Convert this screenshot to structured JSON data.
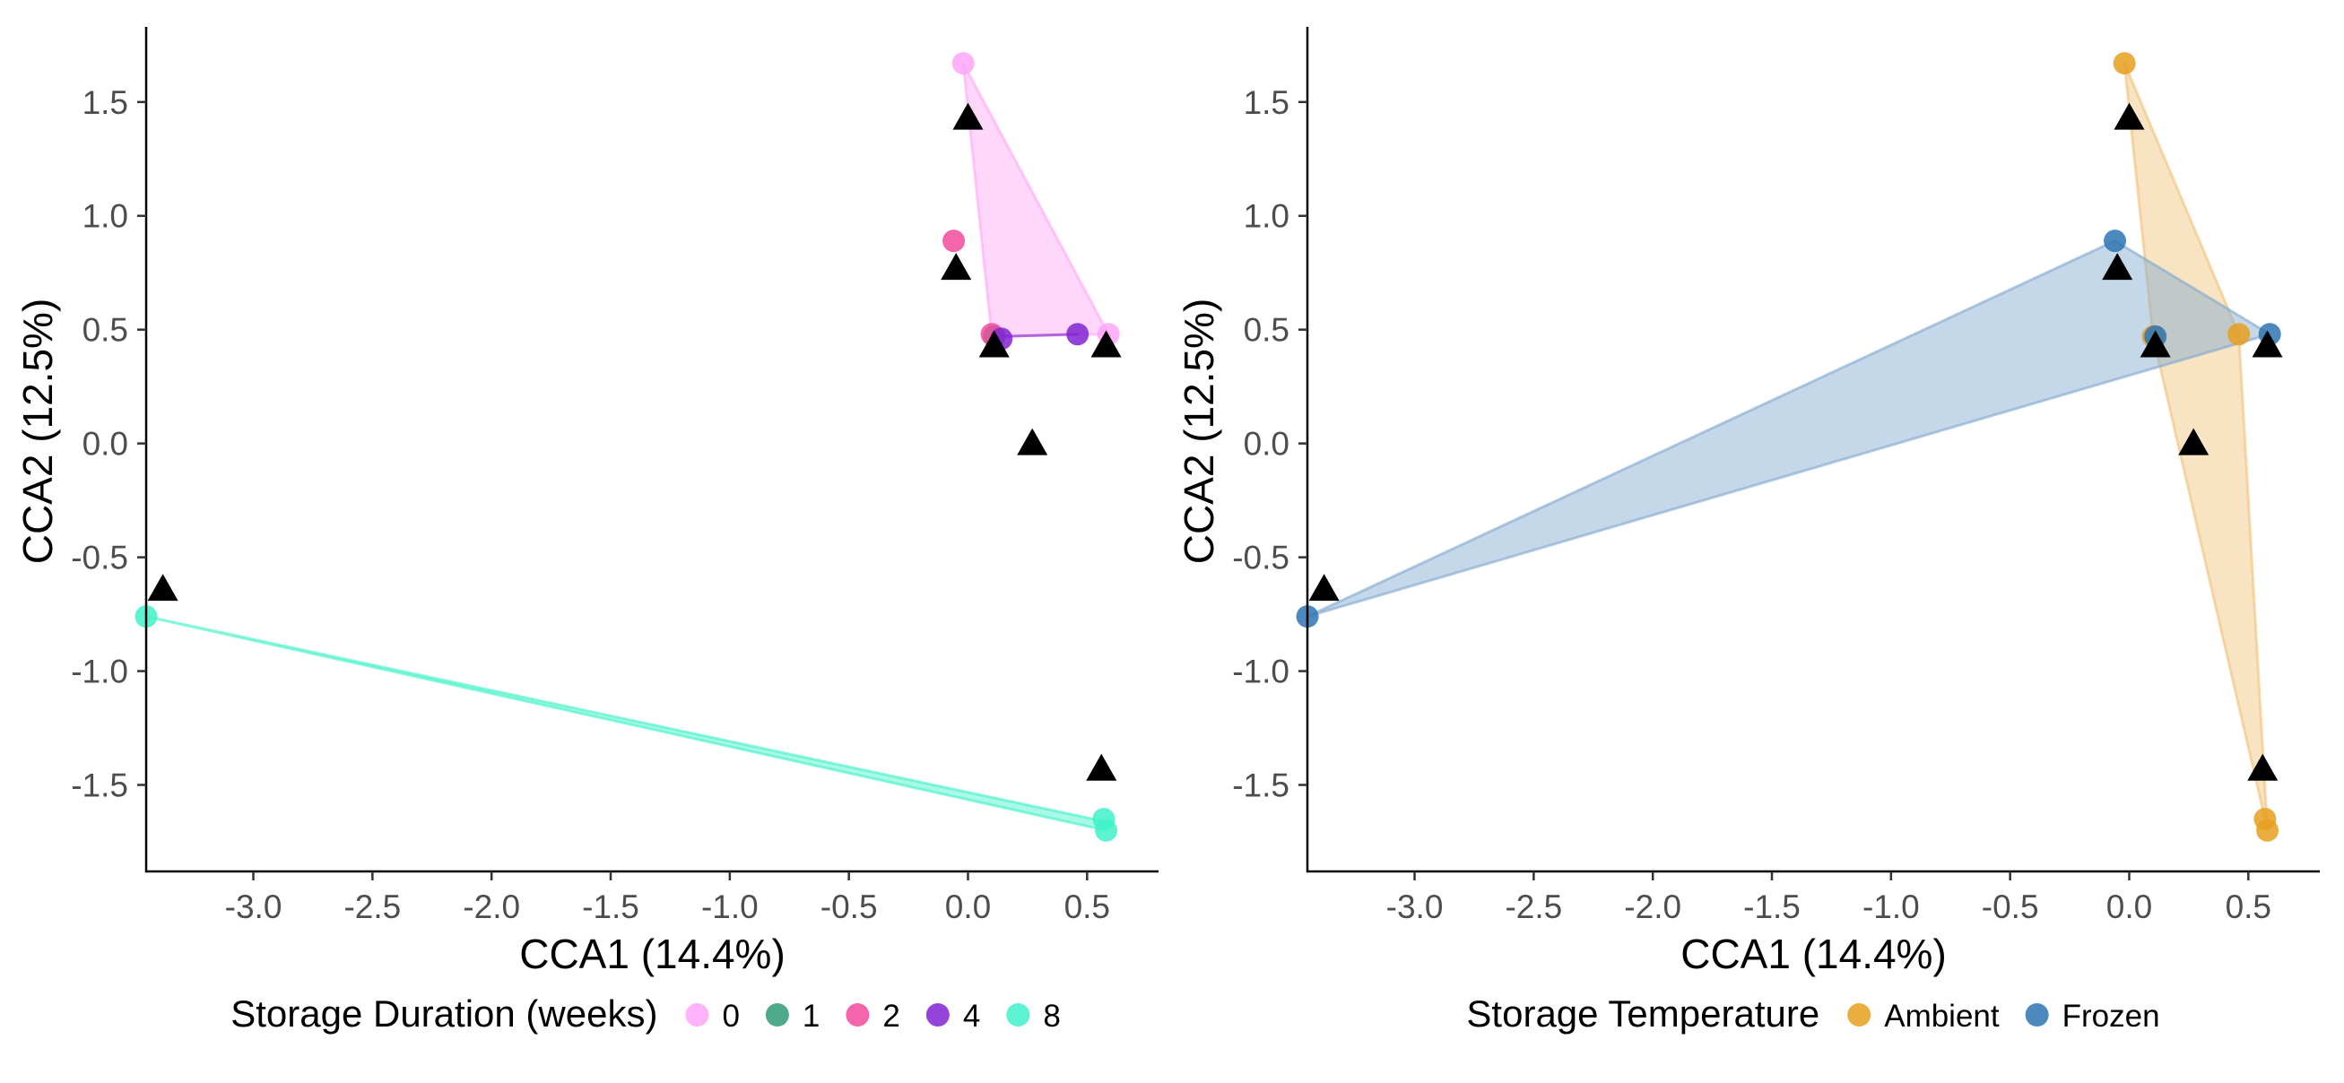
{
  "chart_data": [
    {
      "type": "scatter",
      "title": "",
      "xlabel": "CCA1 (14.4%)",
      "ylabel": "CCA2 (12.5%)",
      "xlim": [
        -3.45,
        0.8
      ],
      "ylim": [
        -1.88,
        1.83
      ],
      "x_ticks": [
        "-3.0",
        "-2.5",
        "-2.0",
        "-1.5",
        "-1.0",
        "-0.5",
        "0.0",
        "0.5"
      ],
      "y_ticks": [
        "-1.5",
        "-1.0",
        "-0.5",
        "0.0",
        "0.5",
        "1.0",
        "1.5"
      ],
      "grid": false,
      "legend": {
        "title": "Storage Duration (weeks)",
        "position": "bottom",
        "entries": [
          {
            "label": "0",
            "color": "#ffa6f7"
          },
          {
            "label": "1",
            "color": "#2e9a74"
          },
          {
            "label": "2",
            "color": "#f24a9e"
          },
          {
            "label": "4",
            "color": "#8123d1"
          },
          {
            "label": "8",
            "color": "#40f2c8"
          }
        ]
      },
      "hulls": [
        {
          "group": "0",
          "color": "#ffa6f7",
          "points": [
            [
              -0.02,
              1.67
            ],
            [
              0.59,
              0.48
            ],
            [
              0.1,
              0.47
            ]
          ]
        },
        {
          "group": "4",
          "color": "#8123d1",
          "points": [
            [
              0.14,
              0.47
            ],
            [
              0.46,
              0.48
            ]
          ]
        },
        {
          "group": "8",
          "color": "#40f2c8",
          "points": [
            [
              -3.45,
              -0.76
            ],
            [
              0.57,
              -1.66
            ],
            [
              0.58,
              -1.7
            ]
          ]
        }
      ],
      "series": [
        {
          "name": "0",
          "color": "#ffa6f7",
          "points": [
            [
              -0.02,
              1.67
            ],
            [
              0.59,
              0.48
            ]
          ]
        },
        {
          "name": "1",
          "color": "#2e9a74",
          "points": [
            [
              0.11,
              0.47
            ]
          ]
        },
        {
          "name": "2",
          "color": "#f24a9e",
          "points": [
            [
              -0.06,
              0.89
            ],
            [
              0.1,
              0.48
            ]
          ]
        },
        {
          "name": "4",
          "color": "#8123d1",
          "points": [
            [
              0.14,
              0.46
            ],
            [
              0.46,
              0.48
            ]
          ]
        },
        {
          "name": "8",
          "color": "#40f2c8",
          "points": [
            [
              -3.45,
              -0.76
            ],
            [
              0.57,
              -1.65
            ],
            [
              0.58,
              -1.7
            ]
          ]
        }
      ],
      "triangles": [
        [
          -3.38,
          -0.64
        ],
        [
          0.0,
          1.43
        ],
        [
          -0.05,
          0.77
        ],
        [
          0.11,
          0.43
        ],
        [
          0.58,
          0.43
        ],
        [
          0.27,
          0.0
        ],
        [
          0.56,
          -1.43
        ]
      ]
    },
    {
      "type": "scatter",
      "title": "",
      "xlabel": "CCA1 (14.4%)",
      "ylabel": "CCA2 (12.5%)",
      "xlim": [
        -3.45,
        0.8
      ],
      "ylim": [
        -1.88,
        1.83
      ],
      "x_ticks": [
        "-3.0",
        "-2.5",
        "-2.0",
        "-1.5",
        "-1.0",
        "-0.5",
        "0.0",
        "0.5"
      ],
      "y_ticks": [
        "-1.5",
        "-1.0",
        "-0.5",
        "0.0",
        "0.5",
        "1.0",
        "1.5"
      ],
      "grid": false,
      "legend": {
        "title": "Storage Temperature",
        "position": "bottom",
        "entries": [
          {
            "label": "Ambient",
            "color": "#e69f1f"
          },
          {
            "label": "Frozen",
            "color": "#2e74b3"
          }
        ]
      },
      "hulls": [
        {
          "group": "Ambient",
          "color": "#f0c27a",
          "points": [
            [
              -0.02,
              1.67
            ],
            [
              0.46,
              0.48
            ],
            [
              0.58,
              -1.7
            ],
            [
              0.57,
              -1.65
            ],
            [
              0.1,
              0.47
            ]
          ]
        },
        {
          "group": "Frozen",
          "color": "#7fa8ce",
          "points": [
            [
              -3.45,
              -0.76
            ],
            [
              -0.06,
              0.89
            ],
            [
              0.59,
              0.48
            ]
          ]
        }
      ],
      "series": [
        {
          "name": "Ambient",
          "color": "#e69f1f",
          "points": [
            [
              -0.02,
              1.67
            ],
            [
              0.1,
              0.47
            ],
            [
              0.46,
              0.48
            ],
            [
              0.57,
              -1.65
            ],
            [
              0.58,
              -1.7
            ]
          ]
        },
        {
          "name": "Frozen",
          "color": "#2e74b3",
          "points": [
            [
              -3.45,
              -0.76
            ],
            [
              -0.06,
              0.89
            ],
            [
              0.11,
              0.47
            ],
            [
              0.59,
              0.48
            ]
          ]
        }
      ],
      "triangles": [
        [
          -3.38,
          -0.64
        ],
        [
          0.0,
          1.43
        ],
        [
          -0.05,
          0.77
        ],
        [
          0.11,
          0.43
        ],
        [
          0.58,
          0.43
        ],
        [
          0.27,
          0.0
        ],
        [
          0.56,
          -1.43
        ]
      ]
    }
  ]
}
